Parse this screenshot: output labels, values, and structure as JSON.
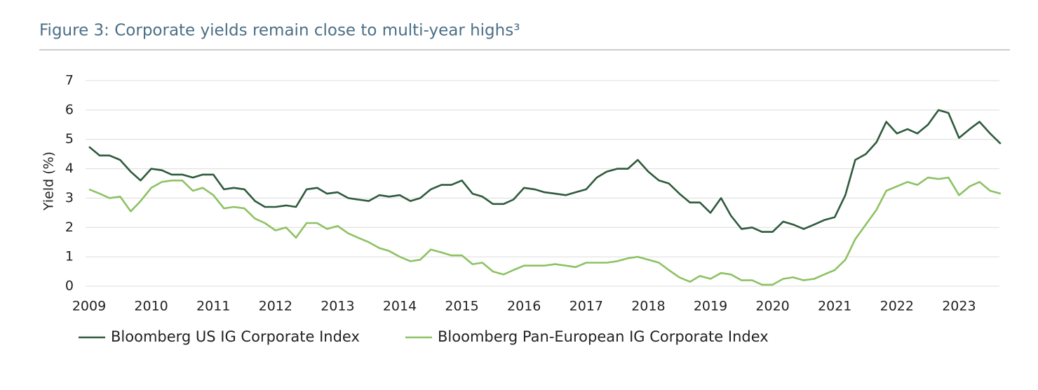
{
  "chart_data": {
    "type": "line",
    "title": "Figure 3: Corporate yields remain close to multi-year highs³",
    "y_label": "Yield (%)",
    "x": [
      2009,
      2009.17,
      2009.33,
      2009.5,
      2009.67,
      2009.83,
      2010,
      2010.17,
      2010.33,
      2010.5,
      2010.67,
      2010.83,
      2011,
      2011.17,
      2011.33,
      2011.5,
      2011.67,
      2011.83,
      2012,
      2012.17,
      2012.33,
      2012.5,
      2012.67,
      2012.83,
      2013,
      2013.17,
      2013.33,
      2013.5,
      2013.67,
      2013.83,
      2014,
      2014.17,
      2014.33,
      2014.5,
      2014.67,
      2014.83,
      2015,
      2015.17,
      2015.33,
      2015.5,
      2015.67,
      2015.83,
      2016,
      2016.17,
      2016.33,
      2016.5,
      2016.67,
      2016.83,
      2017,
      2017.17,
      2017.33,
      2017.5,
      2017.67,
      2017.83,
      2018,
      2018.17,
      2018.33,
      2018.5,
      2018.67,
      2018.83,
      2019,
      2019.17,
      2019.33,
      2019.5,
      2019.67,
      2019.83,
      2020,
      2020.17,
      2020.33,
      2020.5,
      2020.67,
      2020.83,
      2021,
      2021.17,
      2021.33,
      2021.5,
      2021.67,
      2021.83,
      2022,
      2022.17,
      2022.33,
      2022.5,
      2022.67,
      2022.83,
      2023,
      2023.17,
      2023.33,
      2023.5,
      2023.67
    ],
    "series": [
      {
        "name": "Bloomberg US IG Corporate Index",
        "color": "#2e5a3c",
        "values": [
          4.75,
          4.45,
          4.45,
          4.3,
          3.9,
          3.6,
          4.0,
          3.95,
          3.8,
          3.8,
          3.7,
          3.8,
          3.8,
          3.3,
          3.35,
          3.3,
          2.9,
          2.7,
          2.7,
          2.75,
          2.7,
          3.3,
          3.35,
          3.15,
          3.2,
          3.0,
          2.95,
          2.9,
          3.1,
          3.05,
          3.1,
          2.9,
          3.0,
          3.3,
          3.45,
          3.45,
          3.6,
          3.15,
          3.05,
          2.8,
          2.8,
          2.95,
          3.35,
          3.3,
          3.2,
          3.15,
          3.1,
          3.2,
          3.3,
          3.7,
          3.9,
          4.0,
          4.0,
          4.3,
          3.9,
          3.6,
          3.5,
          3.15,
          2.85,
          2.85,
          2.5,
          3.0,
          2.4,
          1.95,
          2.0,
          1.85,
          1.85,
          2.2,
          2.1,
          1.95,
          2.1,
          2.25,
          2.35,
          3.1,
          4.3,
          4.5,
          4.9,
          5.6,
          5.2,
          5.35,
          5.2,
          5.5,
          6.0,
          5.9,
          5.05,
          5.35,
          5.6,
          5.2,
          4.85
        ]
      },
      {
        "name": "Bloomberg Pan-European IG Corporate Index",
        "color": "#8dc263",
        "values": [
          3.3,
          3.15,
          3.0,
          3.05,
          2.55,
          2.9,
          3.35,
          3.55,
          3.6,
          3.6,
          3.25,
          3.35,
          3.1,
          2.65,
          2.7,
          2.65,
          2.3,
          2.15,
          1.9,
          2.0,
          1.65,
          2.15,
          2.15,
          1.95,
          2.05,
          1.8,
          1.65,
          1.5,
          1.3,
          1.2,
          1.0,
          0.85,
          0.9,
          1.25,
          1.15,
          1.05,
          1.05,
          0.75,
          0.8,
          0.5,
          0.4,
          0.55,
          0.7,
          0.7,
          0.7,
          0.75,
          0.7,
          0.65,
          0.8,
          0.8,
          0.8,
          0.85,
          0.95,
          1.0,
          0.9,
          0.8,
          0.55,
          0.3,
          0.15,
          0.35,
          0.25,
          0.45,
          0.4,
          0.2,
          0.2,
          0.05,
          0.05,
          0.25,
          0.3,
          0.2,
          0.25,
          0.4,
          0.55,
          0.9,
          1.6,
          2.1,
          2.6,
          3.25,
          3.4,
          3.55,
          3.45,
          3.7,
          3.65,
          3.7,
          3.1,
          3.4,
          3.55,
          3.25,
          3.15
        ]
      }
    ],
    "xlim": [
      2009,
      2023.65
    ],
    "xticks": [
      2009,
      2010,
      2011,
      2012,
      2013,
      2014,
      2015,
      2016,
      2017,
      2018,
      2019,
      2020,
      2021,
      2022,
      2023
    ],
    "ylim": [
      0,
      7
    ],
    "yticks": [
      0,
      1,
      2,
      3,
      4,
      5,
      6,
      7
    ],
    "grid": true,
    "legend": "bottom"
  }
}
